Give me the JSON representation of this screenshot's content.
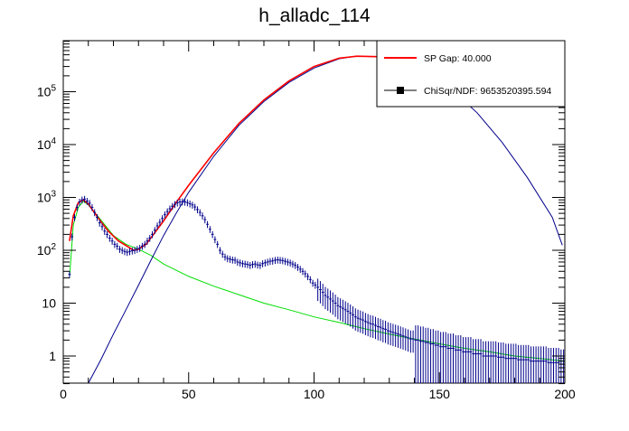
{
  "chart_data": {
    "type": "line",
    "title": "h_alladc_114",
    "xlabel": "",
    "ylabel": "",
    "xlim": [
      0,
      200
    ],
    "ylim": [
      0.3,
      900000
    ],
    "yscale": "log",
    "grid": false,
    "legend_position": "top-right",
    "x_ticks": [
      0,
      50,
      100,
      150,
      200
    ],
    "x_tick_labels": [
      "0",
      "50",
      "100",
      "150",
      "200"
    ],
    "y_ticks": [
      1,
      10,
      100,
      1000,
      10000,
      100000
    ],
    "y_tick_labels": [
      "1",
      "10",
      "10^2",
      "10^3",
      "10^4",
      "10^5"
    ],
    "legend": [
      {
        "label": "SP Gap: 40.000",
        "style": "line",
        "color": "#ff0000"
      },
      {
        "label": "ChiSqr/NDF: 9653520395.594",
        "style": "marker",
        "color": "#000000"
      }
    ],
    "series": [
      {
        "kind": "total_fit",
        "color": "#ff0000",
        "points": [
          [
            2.5,
            150
          ],
          [
            4,
            450
          ],
          [
            6,
            800
          ],
          [
            8,
            900
          ],
          [
            10,
            750
          ],
          [
            12,
            550
          ],
          [
            15,
            350
          ],
          [
            18,
            230
          ],
          [
            22,
            150
          ],
          [
            26,
            115
          ],
          [
            28,
            100
          ],
          [
            30,
            105
          ],
          [
            33,
            130
          ],
          [
            36,
            200
          ],
          [
            40,
            360
          ],
          [
            45,
            800
          ],
          [
            50,
            1700
          ],
          [
            60,
            7000
          ],
          [
            70,
            25000
          ],
          [
            80,
            70000
          ],
          [
            90,
            160000
          ],
          [
            100,
            300000
          ],
          [
            110,
            430000
          ],
          [
            117,
            470000
          ],
          [
            125,
            460000
          ],
          [
            133,
            400000
          ]
        ]
      },
      {
        "kind": "signal_gaussian",
        "color": "#00008b",
        "points": [
          [
            10,
            0.3
          ],
          [
            15,
            0.85
          ],
          [
            20,
            2.6
          ],
          [
            25,
            7.5
          ],
          [
            30,
            22
          ],
          [
            35,
            65
          ],
          [
            40,
            190
          ],
          [
            45,
            500
          ],
          [
            50,
            1250
          ],
          [
            60,
            6000
          ],
          [
            70,
            23000
          ],
          [
            80,
            65000
          ],
          [
            90,
            150000
          ],
          [
            100,
            280000
          ],
          [
            110,
            420000
          ],
          [
            117,
            470000
          ],
          [
            125,
            460000
          ],
          [
            135,
            380000
          ],
          [
            145,
            230000
          ],
          [
            155,
            110000
          ],
          [
            165,
            40000
          ],
          [
            175,
            11000
          ],
          [
            185,
            2400
          ],
          [
            195,
            420
          ],
          [
            199,
            125
          ]
        ]
      },
      {
        "kind": "background_fit",
        "color": "#00dd00",
        "points": [
          [
            2.5,
            30
          ],
          [
            4,
            300
          ],
          [
            6,
            650
          ],
          [
            8,
            850
          ],
          [
            10,
            720
          ],
          [
            14,
            430
          ],
          [
            20,
            190
          ],
          [
            25,
            130
          ],
          [
            30,
            105
          ],
          [
            35,
            80
          ],
          [
            40,
            55
          ],
          [
            50,
            32
          ],
          [
            60,
            21
          ],
          [
            70,
            14.5
          ],
          [
            80,
            10
          ],
          [
            90,
            7.5
          ],
          [
            100,
            5.5
          ],
          [
            110,
            4.3
          ],
          [
            120,
            3.3
          ],
          [
            130,
            2.6
          ],
          [
            140,
            2.1
          ],
          [
            150,
            1.7
          ],
          [
            160,
            1.4
          ],
          [
            170,
            1.2
          ],
          [
            180,
            1.0
          ],
          [
            190,
            0.9
          ],
          [
            200,
            0.8
          ]
        ]
      },
      {
        "kind": "data_points",
        "color": "#00008b",
        "points": [
          [
            2.5,
            35
          ],
          [
            3.5,
            180
          ],
          [
            4.5,
            420
          ],
          [
            5.5,
            650
          ],
          [
            6.5,
            820
          ],
          [
            7.5,
            900
          ],
          [
            8.5,
            930
          ],
          [
            9.5,
            850
          ],
          [
            10.5,
            780
          ],
          [
            11.5,
            650
          ],
          [
            12.5,
            520
          ],
          [
            13.5,
            420
          ],
          [
            14.5,
            330
          ],
          [
            15.5,
            280
          ],
          [
            16.5,
            230
          ],
          [
            17.5,
            200
          ],
          [
            18.5,
            170
          ],
          [
            19.5,
            150
          ],
          [
            20.5,
            130
          ],
          [
            21.5,
            120
          ],
          [
            22.5,
            105
          ],
          [
            23.5,
            100
          ],
          [
            24.5,
            95
          ],
          [
            25.5,
            92
          ],
          [
            26.5,
            95
          ],
          [
            27.5,
            98
          ],
          [
            28.5,
            100
          ],
          [
            29.5,
            105
          ],
          [
            30.5,
            110
          ],
          [
            31.5,
            120
          ],
          [
            32.5,
            130
          ],
          [
            33.5,
            150
          ],
          [
            34.5,
            170
          ],
          [
            35.5,
            200
          ],
          [
            36.5,
            240
          ],
          [
            37.5,
            290
          ],
          [
            38.5,
            340
          ],
          [
            39.5,
            400
          ],
          [
            40.5,
            470
          ],
          [
            41.5,
            540
          ],
          [
            42.5,
            610
          ],
          [
            43.5,
            680
          ],
          [
            44.5,
            740
          ],
          [
            45.5,
            790
          ],
          [
            46.5,
            820
          ],
          [
            47.5,
            830
          ],
          [
            48.5,
            820
          ],
          [
            49.5,
            800
          ],
          [
            50.5,
            760
          ],
          [
            51.5,
            720
          ],
          [
            52.5,
            660
          ],
          [
            53.5,
            590
          ],
          [
            54.5,
            520
          ],
          [
            55.5,
            450
          ],
          [
            56.5,
            380
          ],
          [
            57.5,
            310
          ],
          [
            58.5,
            250
          ],
          [
            59.5,
            200
          ],
          [
            60.5,
            160
          ],
          [
            61.5,
            130
          ],
          [
            62.5,
            100
          ],
          [
            63.5,
            85
          ],
          [
            64.5,
            75
          ],
          [
            65.5,
            70
          ],
          [
            66.5,
            68
          ],
          [
            67.5,
            66
          ],
          [
            68.5,
            65
          ],
          [
            69.5,
            60
          ],
          [
            70.5,
            58
          ],
          [
            71.5,
            56
          ],
          [
            72.5,
            55
          ],
          [
            73.5,
            54
          ],
          [
            74.5,
            52
          ],
          [
            75.5,
            54
          ],
          [
            76.5,
            55
          ],
          [
            77.5,
            53
          ],
          [
            78.5,
            52
          ],
          [
            79.5,
            56
          ],
          [
            80.5,
            58
          ],
          [
            81.5,
            60
          ],
          [
            82.5,
            62
          ],
          [
            83.5,
            63
          ],
          [
            84.5,
            65
          ],
          [
            85.5,
            66
          ],
          [
            86.5,
            65
          ],
          [
            87.5,
            64
          ],
          [
            88.5,
            62
          ],
          [
            89.5,
            60
          ],
          [
            90.5,
            58
          ],
          [
            91.5,
            55
          ],
          [
            92.5,
            52
          ],
          [
            93.5,
            48
          ],
          [
            94.5,
            44
          ],
          [
            95.5,
            40
          ],
          [
            96.5,
            36
          ],
          [
            97.5,
            32
          ],
          [
            98.5,
            28
          ],
          [
            99.5,
            24
          ],
          [
            100.5,
            22
          ],
          [
            101.5,
            20
          ],
          [
            102.5,
            18
          ],
          [
            103.5,
            16
          ],
          [
            104.5,
            14
          ],
          [
            105.5,
            13
          ],
          [
            106.5,
            12
          ],
          [
            107.5,
            11
          ],
          [
            108.5,
            10
          ],
          [
            109.5,
            9
          ],
          [
            110.5,
            8.5
          ],
          [
            111.5,
            8
          ],
          [
            112.5,
            7.5
          ],
          [
            113.5,
            7
          ],
          [
            114.5,
            6.5
          ],
          [
            115.5,
            6
          ],
          [
            116.5,
            5.5
          ],
          [
            117.5,
            5.2
          ],
          [
            118.5,
            5
          ],
          [
            119.5,
            4.8
          ],
          [
            120.5,
            4.5
          ],
          [
            121.5,
            4.3
          ],
          [
            122.5,
            4.1
          ],
          [
            123.5,
            4
          ],
          [
            124.5,
            3.8
          ],
          [
            125.5,
            3.6
          ],
          [
            126.5,
            3.5
          ],
          [
            127.5,
            3.3
          ],
          [
            128.5,
            3.2
          ],
          [
            129.5,
            3
          ],
          [
            130.5,
            2.9
          ],
          [
            131.5,
            2.8
          ],
          [
            132.5,
            2.7
          ],
          [
            133.5,
            2.6
          ],
          [
            134.5,
            2.5
          ],
          [
            135.5,
            2.4
          ],
          [
            136.5,
            2.3
          ],
          [
            137.5,
            2.2
          ],
          [
            138.5,
            2.1
          ],
          [
            139.5,
            2.1
          ],
          [
            140.5,
            2
          ],
          [
            141.5,
            2
          ],
          [
            142.5,
            1.9
          ],
          [
            143.5,
            1.9
          ],
          [
            144.5,
            1.8
          ],
          [
            145.5,
            1.8
          ],
          [
            146.5,
            1.7
          ],
          [
            147.5,
            1.7
          ],
          [
            148.5,
            1.6
          ],
          [
            149.5,
            1.6
          ],
          [
            150.5,
            1.5
          ],
          [
            151.5,
            1.5
          ],
          [
            152.5,
            1.5
          ],
          [
            153.5,
            1.4
          ],
          [
            154.5,
            1.4
          ],
          [
            155.5,
            1.4
          ],
          [
            156.5,
            1.3
          ],
          [
            157.5,
            1.3
          ],
          [
            158.5,
            1.3
          ],
          [
            159.5,
            1.2
          ],
          [
            160.5,
            1.2
          ],
          [
            161.5,
            1.2
          ],
          [
            162.5,
            1.2
          ],
          [
            163.5,
            1.1
          ],
          [
            164.5,
            1.1
          ],
          [
            165.5,
            1.1
          ],
          [
            166.5,
            1.1
          ],
          [
            167.5,
            1
          ],
          [
            168.5,
            1
          ],
          [
            169.5,
            1
          ],
          [
            170.5,
            1
          ],
          [
            171.5,
            1
          ],
          [
            172.5,
            1
          ],
          [
            173.5,
            0.95
          ],
          [
            174.5,
            0.95
          ],
          [
            175.5,
            0.95
          ],
          [
            176.5,
            0.9
          ],
          [
            177.5,
            0.9
          ],
          [
            178.5,
            0.9
          ],
          [
            179.5,
            0.9
          ],
          [
            180.5,
            0.9
          ],
          [
            181.5,
            0.85
          ],
          [
            182.5,
            0.85
          ],
          [
            183.5,
            0.85
          ],
          [
            184.5,
            0.85
          ],
          [
            185.5,
            0.85
          ],
          [
            186.5,
            0.8
          ],
          [
            187.5,
            0.8
          ],
          [
            188.5,
            0.8
          ],
          [
            189.5,
            0.8
          ],
          [
            190.5,
            0.8
          ],
          [
            191.5,
            0.8
          ],
          [
            192.5,
            0.8
          ],
          [
            193.5,
            0.75
          ],
          [
            194.5,
            0.75
          ],
          [
            195.5,
            0.75
          ],
          [
            196.5,
            0.75
          ],
          [
            197.5,
            0.75
          ],
          [
            198.5,
            0.7
          ],
          [
            199.5,
            0.7
          ]
        ]
      }
    ]
  }
}
